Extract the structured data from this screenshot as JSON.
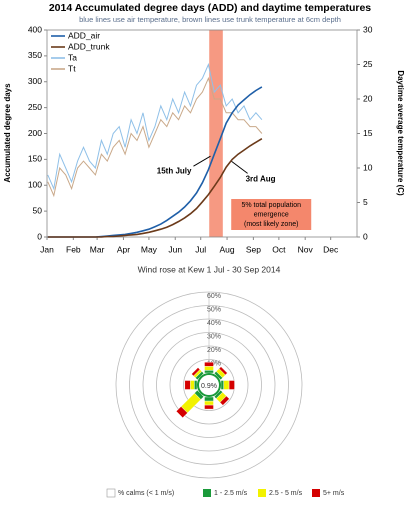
{
  "chart_data": [
    {
      "type": "line",
      "title": "2014 Accumulated degree days (ADD) and daytime temperatures",
      "subtitle": "blue lines use air temperature, brown lines use trunk temperature at 6cm depth",
      "ylabel": "Accumulated degree days",
      "y2label": "Daytime average temperature (C)",
      "x": [
        1,
        8,
        15,
        22,
        29,
        36,
        43,
        50,
        57,
        64,
        71,
        78,
        85,
        92,
        99,
        106,
        113,
        120,
        127,
        134,
        141,
        148,
        155,
        162,
        169,
        176,
        183,
        190,
        197,
        204,
        211,
        218,
        225,
        232,
        239,
        246,
        253
      ],
      "xlim": [
        0,
        365
      ],
      "xticks": [
        {
          "value": 0,
          "label": "Jan"
        },
        {
          "value": 31,
          "label": "Feb"
        },
        {
          "value": 59,
          "label": "Mar"
        },
        {
          "value": 90,
          "label": "Apr"
        },
        {
          "value": 120,
          "label": "May"
        },
        {
          "value": 151,
          "label": "Jun"
        },
        {
          "value": 181,
          "label": "Jul"
        },
        {
          "value": 212,
          "label": "Aug"
        },
        {
          "value": 243,
          "label": "Sep"
        },
        {
          "value": 273,
          "label": "Oct"
        },
        {
          "value": 304,
          "label": "Nov"
        },
        {
          "value": 334,
          "label": "Dec"
        }
      ],
      "ylim": [
        0,
        400
      ],
      "yticks": [
        0,
        50,
        100,
        150,
        200,
        250,
        300,
        350,
        400
      ],
      "y2lim": [
        0,
        30
      ],
      "y2ticks": [
        0,
        5,
        10,
        15,
        20,
        25,
        30
      ],
      "legend": "upper left",
      "series": [
        {
          "name": "ADD_air",
          "color": "#1f5fa8",
          "values": [
            0,
            0,
            0,
            0,
            0,
            0,
            0,
            0,
            0,
            1,
            2,
            3,
            4,
            5,
            7,
            9,
            12,
            15,
            20,
            25,
            32,
            40,
            48,
            58,
            70,
            85,
            105,
            130,
            160,
            190,
            220,
            240,
            255,
            265,
            275,
            283,
            290
          ]
        },
        {
          "name": "ADD_trunk",
          "color": "#6b3a1a",
          "values": [
            0,
            0,
            0,
            0,
            0,
            0,
            0,
            0,
            0,
            0,
            1,
            1,
            2,
            3,
            4,
            5,
            7,
            9,
            12,
            15,
            19,
            24,
            30,
            37,
            45,
            55,
            68,
            82,
            98,
            115,
            135,
            150,
            160,
            168,
            176,
            183,
            190
          ]
        },
        {
          "name": "Ta",
          "color": "#8fc0e8",
          "axis": "y2",
          "values": [
            9,
            7,
            12,
            10,
            8,
            11,
            13,
            11,
            10,
            14,
            12,
            15,
            16,
            13,
            17,
            15,
            18,
            14,
            16,
            19,
            17,
            20,
            18,
            21,
            19,
            22,
            23,
            25,
            21,
            22,
            19,
            20,
            18,
            19,
            17,
            18,
            17
          ]
        },
        {
          "name": "Tt",
          "color": "#c9a98a",
          "axis": "y2",
          "values": [
            8,
            6,
            10,
            9,
            7,
            10,
            11,
            10,
            9,
            12,
            11,
            13,
            14,
            12,
            15,
            14,
            16,
            13,
            15,
            17,
            16,
            18,
            17,
            19,
            18,
            20,
            21,
            23,
            20,
            20,
            18,
            18,
            17,
            17,
            16,
            16,
            15
          ]
        }
      ],
      "highlight": {
        "x": [
          191,
          207
        ],
        "color": "#f4876c"
      },
      "annotations": [
        {
          "text": "15th July",
          "x": 196
        },
        {
          "text": "3rd Aug",
          "x": 215
        },
        {
          "lines": [
            "5% total population",
            "emergence",
            "(most likely zone)"
          ]
        }
      ]
    },
    {
      "type": "wind_rose",
      "title": "Wind rose at Kew 1 Jul - 30 Sep 2014",
      "categories": [
        null,
        null,
        null,
        null,
        null,
        null,
        null,
        null
      ],
      "rlim": [
        0,
        60
      ],
      "rticks": [
        {
          "value": 10,
          "label": "10%"
        },
        {
          "value": 20,
          "label": "20%"
        },
        {
          "value": 30,
          "label": "30%"
        },
        {
          "value": 40,
          "label": "40%"
        },
        {
          "value": 50,
          "label": "50%"
        },
        {
          "value": 60,
          "label": "60%"
        }
      ],
      "calms": {
        "value": 0.9,
        "label": "0.9%",
        "name": "% calms (< 1 m/s)"
      },
      "series": [
        {
          "name": "1 - 2.5 m/s",
          "color": "#1a9a3a",
          "values": [
            2,
            2,
            2,
            2,
            3,
            3,
            2,
            2
          ]
        },
        {
          "name": "2.5 - 5 m/s",
          "color": "#f2f200",
          "values": [
            3,
            3,
            4,
            4,
            3,
            14,
            3,
            2
          ]
        },
        {
          "name": "5+ m/s",
          "color": "#d40000",
          "values": [
            3,
            2,
            4,
            3,
            3,
            5,
            4,
            2
          ]
        }
      ]
    }
  ]
}
